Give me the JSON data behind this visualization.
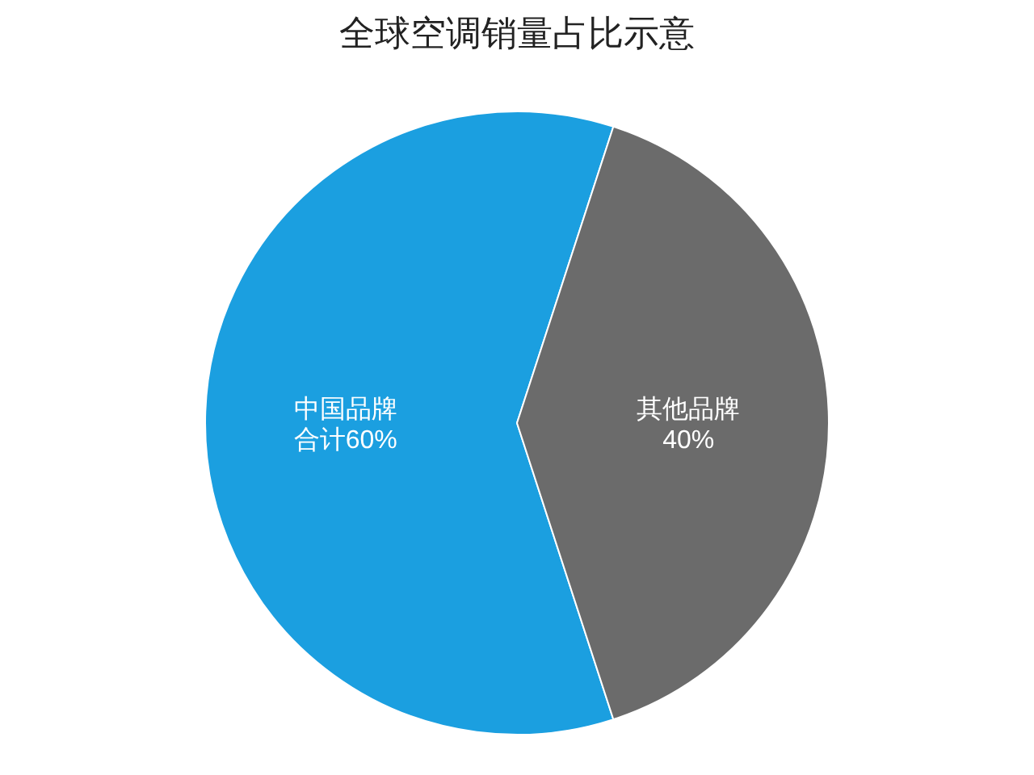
{
  "chart_data": {
    "type": "pie",
    "title": "全球空调销量占比示意",
    "categories": [
      "中国品牌",
      "其他品牌"
    ],
    "values": [
      60,
      40
    ],
    "colors": [
      "#1b9fe0",
      "#6b6b6b"
    ],
    "value_labels": [
      "合计60%",
      "40%"
    ]
  }
}
